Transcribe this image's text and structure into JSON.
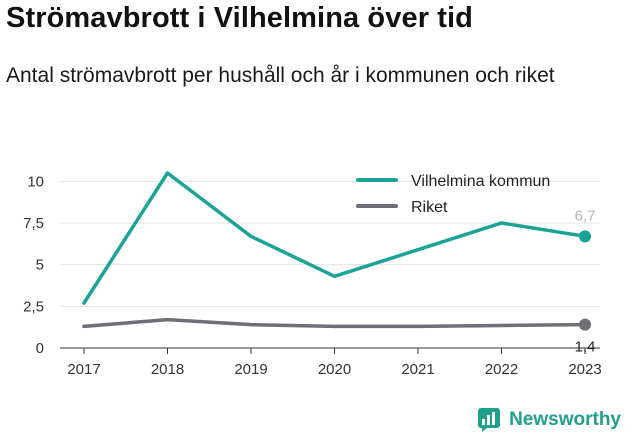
{
  "title": "Strömavbrott i Vilhelmina över tid",
  "subtitle": "Antal strömavbrott per hushåll och år i kommunen och riket",
  "brand": {
    "name": "Newsworthy",
    "icon": "newsworthy-logo-icon",
    "color": "#1f9f8c"
  },
  "chart_data": {
    "type": "line",
    "x": [
      "2017",
      "2018",
      "2019",
      "2020",
      "2021",
      "2022",
      "2023"
    ],
    "ylim": [
      0,
      10.8
    ],
    "yticks": [
      0,
      2.5,
      5,
      7.5,
      10
    ],
    "ytick_labels": [
      "0",
      "2,5",
      "5",
      "7,5",
      "10"
    ],
    "grid": true,
    "legend_position": "top-right",
    "series": [
      {
        "name": "Vilhelmina kommun",
        "color": "#1aa398",
        "values": [
          2.7,
          10.5,
          6.7,
          4.3,
          5.9,
          7.5,
          6.7
        ],
        "end_label": "6,7",
        "end_label_color": "#b5b5b5"
      },
      {
        "name": "Riket",
        "color": "#6e6e74",
        "values": [
          1.3,
          1.7,
          1.4,
          1.3,
          1.3,
          1.35,
          1.4
        ],
        "end_label": "1,4",
        "end_label_color": "#222222"
      }
    ]
  }
}
